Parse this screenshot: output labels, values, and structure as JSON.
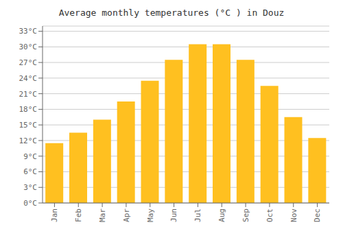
{
  "chart_data": {
    "type": "bar",
    "title": "Average monthly temperatures (°C ) in Douz",
    "categories": [
      "Jan",
      "Feb",
      "Mar",
      "Apr",
      "May",
      "Jun",
      "Jul",
      "Aug",
      "Sep",
      "Oct",
      "Nov",
      "Dec"
    ],
    "values": [
      11.5,
      13.5,
      16.0,
      19.5,
      23.5,
      27.5,
      30.5,
      30.5,
      27.5,
      22.5,
      16.5,
      12.5
    ],
    "color": "#FFC020",
    "ylim": [
      0,
      34
    ],
    "yticks": [
      {
        "value": 0,
        "label": "0°C"
      },
      {
        "value": 3,
        "label": "3°C"
      },
      {
        "value": 6,
        "label": "6°C"
      },
      {
        "value": 9,
        "label": "9°C"
      },
      {
        "value": 12,
        "label": "12°C"
      },
      {
        "value": 15,
        "label": "15°C"
      },
      {
        "value": 18,
        "label": "18°C"
      },
      {
        "value": 21,
        "label": "21°C"
      },
      {
        "value": 24,
        "label": "24°C"
      },
      {
        "value": 27,
        "label": "27°C"
      },
      {
        "value": 30,
        "label": "30°C"
      },
      {
        "value": 33,
        "label": "33°C"
      }
    ],
    "grid": true
  }
}
